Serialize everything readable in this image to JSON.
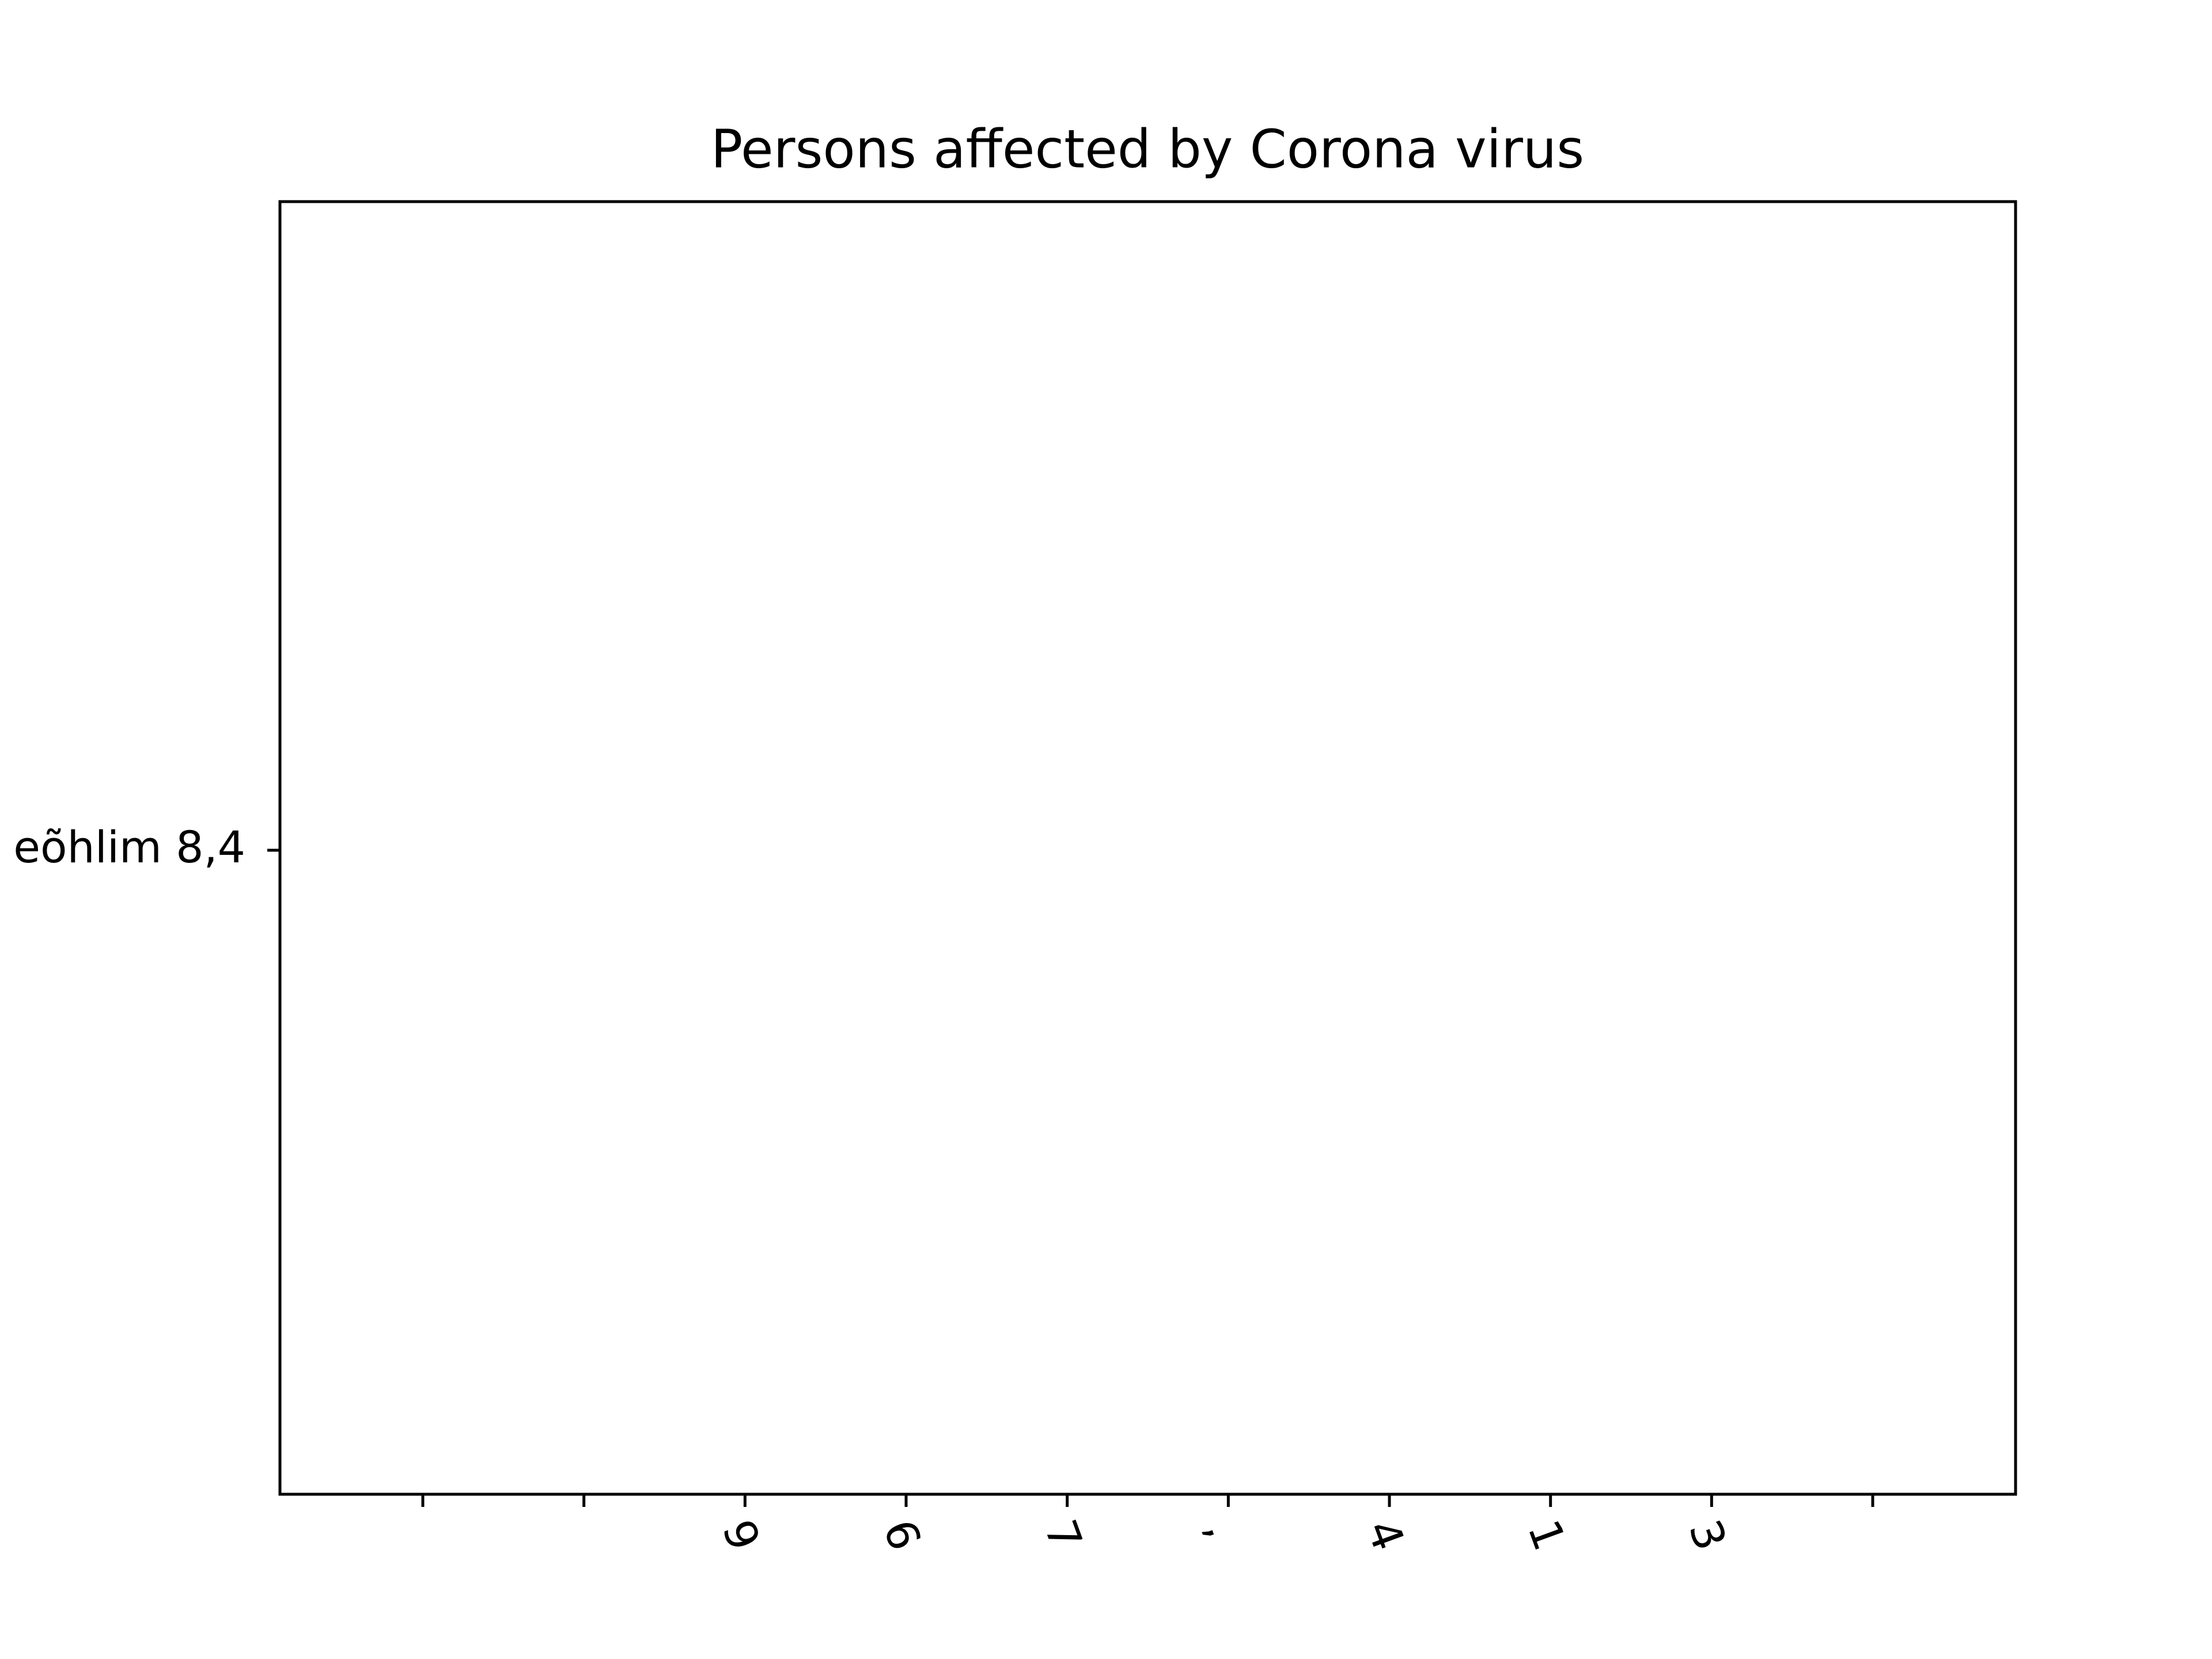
{
  "chart_data": {
    "type": "bar",
    "title": "Persons affected by Corona virus",
    "categories": [
      null,
      null,
      "9",
      "6",
      "7",
      ",",
      "4",
      "1",
      "3",
      null
    ],
    "y_categories": [
      "eõhlim 8,4"
    ],
    "x_tick_rotation": 70
  }
}
